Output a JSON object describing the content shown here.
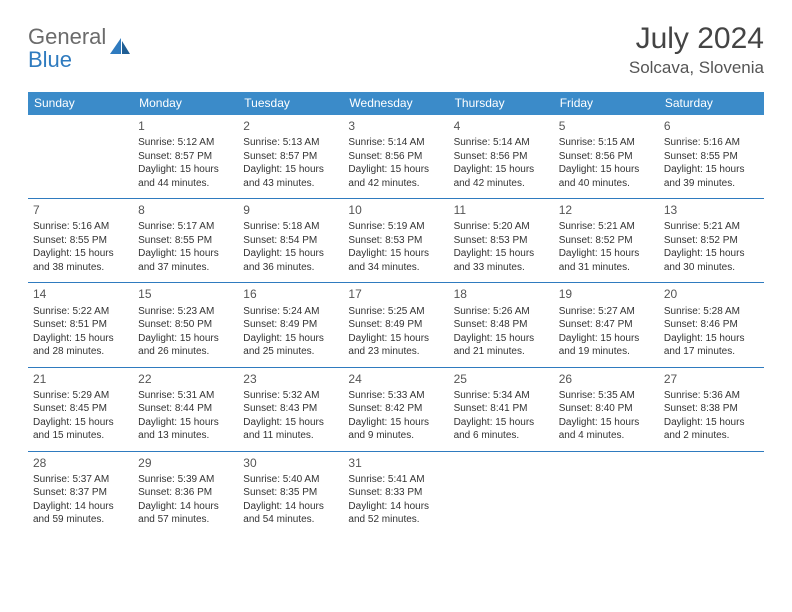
{
  "logo": {
    "word1": "General",
    "word2": "Blue"
  },
  "title": "July 2024",
  "location": "Solcava, Slovenia",
  "colors": {
    "header_bg": "#3b8bc9",
    "rule": "#2f7bbf",
    "logo_gray": "#6b6b6b",
    "logo_blue": "#2f7bbf",
    "text": "#333333"
  },
  "weekdays": [
    "Sunday",
    "Monday",
    "Tuesday",
    "Wednesday",
    "Thursday",
    "Friday",
    "Saturday"
  ],
  "weeks": [
    [
      {
        "n": "",
        "sr": "",
        "ss": "",
        "dl": ""
      },
      {
        "n": "1",
        "sr": "Sunrise: 5:12 AM",
        "ss": "Sunset: 8:57 PM",
        "dl": "Daylight: 15 hours and 44 minutes."
      },
      {
        "n": "2",
        "sr": "Sunrise: 5:13 AM",
        "ss": "Sunset: 8:57 PM",
        "dl": "Daylight: 15 hours and 43 minutes."
      },
      {
        "n": "3",
        "sr": "Sunrise: 5:14 AM",
        "ss": "Sunset: 8:56 PM",
        "dl": "Daylight: 15 hours and 42 minutes."
      },
      {
        "n": "4",
        "sr": "Sunrise: 5:14 AM",
        "ss": "Sunset: 8:56 PM",
        "dl": "Daylight: 15 hours and 42 minutes."
      },
      {
        "n": "5",
        "sr": "Sunrise: 5:15 AM",
        "ss": "Sunset: 8:56 PM",
        "dl": "Daylight: 15 hours and 40 minutes."
      },
      {
        "n": "6",
        "sr": "Sunrise: 5:16 AM",
        "ss": "Sunset: 8:55 PM",
        "dl": "Daylight: 15 hours and 39 minutes."
      }
    ],
    [
      {
        "n": "7",
        "sr": "Sunrise: 5:16 AM",
        "ss": "Sunset: 8:55 PM",
        "dl": "Daylight: 15 hours and 38 minutes."
      },
      {
        "n": "8",
        "sr": "Sunrise: 5:17 AM",
        "ss": "Sunset: 8:55 PM",
        "dl": "Daylight: 15 hours and 37 minutes."
      },
      {
        "n": "9",
        "sr": "Sunrise: 5:18 AM",
        "ss": "Sunset: 8:54 PM",
        "dl": "Daylight: 15 hours and 36 minutes."
      },
      {
        "n": "10",
        "sr": "Sunrise: 5:19 AM",
        "ss": "Sunset: 8:53 PM",
        "dl": "Daylight: 15 hours and 34 minutes."
      },
      {
        "n": "11",
        "sr": "Sunrise: 5:20 AM",
        "ss": "Sunset: 8:53 PM",
        "dl": "Daylight: 15 hours and 33 minutes."
      },
      {
        "n": "12",
        "sr": "Sunrise: 5:21 AM",
        "ss": "Sunset: 8:52 PM",
        "dl": "Daylight: 15 hours and 31 minutes."
      },
      {
        "n": "13",
        "sr": "Sunrise: 5:21 AM",
        "ss": "Sunset: 8:52 PM",
        "dl": "Daylight: 15 hours and 30 minutes."
      }
    ],
    [
      {
        "n": "14",
        "sr": "Sunrise: 5:22 AM",
        "ss": "Sunset: 8:51 PM",
        "dl": "Daylight: 15 hours and 28 minutes."
      },
      {
        "n": "15",
        "sr": "Sunrise: 5:23 AM",
        "ss": "Sunset: 8:50 PM",
        "dl": "Daylight: 15 hours and 26 minutes."
      },
      {
        "n": "16",
        "sr": "Sunrise: 5:24 AM",
        "ss": "Sunset: 8:49 PM",
        "dl": "Daylight: 15 hours and 25 minutes."
      },
      {
        "n": "17",
        "sr": "Sunrise: 5:25 AM",
        "ss": "Sunset: 8:49 PM",
        "dl": "Daylight: 15 hours and 23 minutes."
      },
      {
        "n": "18",
        "sr": "Sunrise: 5:26 AM",
        "ss": "Sunset: 8:48 PM",
        "dl": "Daylight: 15 hours and 21 minutes."
      },
      {
        "n": "19",
        "sr": "Sunrise: 5:27 AM",
        "ss": "Sunset: 8:47 PM",
        "dl": "Daylight: 15 hours and 19 minutes."
      },
      {
        "n": "20",
        "sr": "Sunrise: 5:28 AM",
        "ss": "Sunset: 8:46 PM",
        "dl": "Daylight: 15 hours and 17 minutes."
      }
    ],
    [
      {
        "n": "21",
        "sr": "Sunrise: 5:29 AM",
        "ss": "Sunset: 8:45 PM",
        "dl": "Daylight: 15 hours and 15 minutes."
      },
      {
        "n": "22",
        "sr": "Sunrise: 5:31 AM",
        "ss": "Sunset: 8:44 PM",
        "dl": "Daylight: 15 hours and 13 minutes."
      },
      {
        "n": "23",
        "sr": "Sunrise: 5:32 AM",
        "ss": "Sunset: 8:43 PM",
        "dl": "Daylight: 15 hours and 11 minutes."
      },
      {
        "n": "24",
        "sr": "Sunrise: 5:33 AM",
        "ss": "Sunset: 8:42 PM",
        "dl": "Daylight: 15 hours and 9 minutes."
      },
      {
        "n": "25",
        "sr": "Sunrise: 5:34 AM",
        "ss": "Sunset: 8:41 PM",
        "dl": "Daylight: 15 hours and 6 minutes."
      },
      {
        "n": "26",
        "sr": "Sunrise: 5:35 AM",
        "ss": "Sunset: 8:40 PM",
        "dl": "Daylight: 15 hours and 4 minutes."
      },
      {
        "n": "27",
        "sr": "Sunrise: 5:36 AM",
        "ss": "Sunset: 8:38 PM",
        "dl": "Daylight: 15 hours and 2 minutes."
      }
    ],
    [
      {
        "n": "28",
        "sr": "Sunrise: 5:37 AM",
        "ss": "Sunset: 8:37 PM",
        "dl": "Daylight: 14 hours and 59 minutes."
      },
      {
        "n": "29",
        "sr": "Sunrise: 5:39 AM",
        "ss": "Sunset: 8:36 PM",
        "dl": "Daylight: 14 hours and 57 minutes."
      },
      {
        "n": "30",
        "sr": "Sunrise: 5:40 AM",
        "ss": "Sunset: 8:35 PM",
        "dl": "Daylight: 14 hours and 54 minutes."
      },
      {
        "n": "31",
        "sr": "Sunrise: 5:41 AM",
        "ss": "Sunset: 8:33 PM",
        "dl": "Daylight: 14 hours and 52 minutes."
      },
      {
        "n": "",
        "sr": "",
        "ss": "",
        "dl": ""
      },
      {
        "n": "",
        "sr": "",
        "ss": "",
        "dl": ""
      },
      {
        "n": "",
        "sr": "",
        "ss": "",
        "dl": ""
      }
    ]
  ]
}
